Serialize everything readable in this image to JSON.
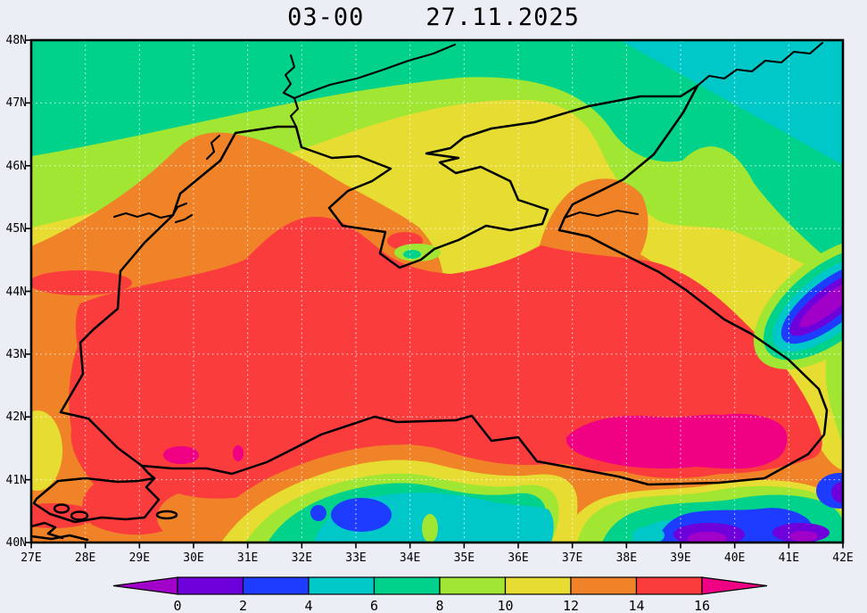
{
  "window": {
    "background": "#ECEEF6"
  },
  "header": {
    "title": "03-00    27.11.2025"
  },
  "axes": {
    "lat_labels": [
      "48N",
      "47N",
      "46N",
      "45N",
      "44N",
      "43N",
      "42N",
      "41N",
      "40N"
    ],
    "lon_labels": [
      "27E",
      "28E",
      "29E",
      "30E",
      "31E",
      "32E",
      "33E",
      "34E",
      "35E",
      "36E",
      "37E",
      "38E",
      "39E",
      "40E",
      "41E",
      "42E"
    ]
  },
  "palette": {
    "below": "#A000C8",
    "p0": "#6E00DC",
    "p2": "#1E3CFF",
    "p4": "#00C8C8",
    "p6": "#00D28C",
    "p8": "#A0E632",
    "p10": "#E6DC32",
    "p12": "#F08228",
    "p14": "#FA3C3C",
    "above": "#F00082"
  },
  "colorbar": {
    "labels": [
      "0",
      "2",
      "4",
      "6",
      "8",
      "10",
      "12",
      "14",
      "16"
    ],
    "segment_colors": [
      "#6E00DC",
      "#1E3CFF",
      "#00C8C8",
      "#00D28C",
      "#A0E632",
      "#E6DC32",
      "#F08228",
      "#FA3C3C"
    ],
    "below_color": "#A000C8",
    "above_color": "#F00082"
  },
  "chart_data": {
    "type": "filled-contour-map",
    "title": "03-00    27.11.2025",
    "region": "Black Sea, Sea of Azov and surrounding land",
    "lon_range": [
      "27E",
      "42E"
    ],
    "lat_range": [
      "40N",
      "48N"
    ],
    "contour_levels": [
      0,
      2,
      4,
      6,
      8,
      10,
      12,
      14,
      16
    ],
    "grid": "dotted graticule every 1 degree",
    "legend_position": "bottom horizontal color bar with end arrows",
    "features": [
      {
        "area": "open Black Sea basin",
        "value_range": "14-16"
      },
      {
        "area": "southeastern Black Sea (36E-41E, 41.2N-42.3N)",
        "value_range": "above 16"
      },
      {
        "area": "small pockets north of Bosphorus (29.5E-31E, 41.3N-41.6N)",
        "value_range": "above 16"
      },
      {
        "area": "northwestern shelf, west coast and southwestern land",
        "value_range": "12-14"
      },
      {
        "area": "Crimea, Sea of Azov and northeastern coastal land",
        "value_range": "10-12"
      },
      {
        "area": "northern land band",
        "value_range": "8-10"
      },
      {
        "area": "far north band",
        "value_range": "6-8"
      },
      {
        "area": "northeastern corner wedge (38E-42E, 46.5N-48N)",
        "value_range": "4-6"
      },
      {
        "area": "central Anatolia (31E-36E, 40N-41.3N)",
        "value_range": "2-6"
      },
      {
        "area": "eastern Anatolia / Caucasus interior (37E-42E, 40N-41.5N and 40E-42E, 42.8N-44N)",
        "value_range": "below 0 to 4"
      }
    ]
  }
}
